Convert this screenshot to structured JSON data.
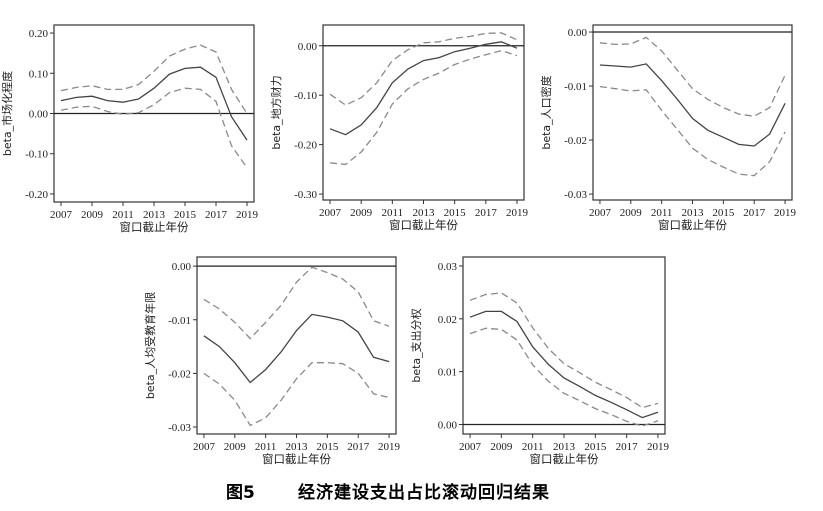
{
  "figure": {
    "number": "图5",
    "title": "经济建设支出占比滚动回归结果"
  },
  "colors": {
    "estimate": "#444444",
    "ci": "#8a8a8a",
    "zero": "#222222",
    "axis": "#333333"
  },
  "chart_data": [
    {
      "type": "line",
      "ylabel": "beta_市场化程度",
      "xlabel": "窗口截止年份",
      "x": [
        2007,
        2008,
        2009,
        2010,
        2011,
        2012,
        2013,
        2014,
        2015,
        2016,
        2017,
        2018,
        2019
      ],
      "xticks": [
        "2007",
        "2009",
        "2011",
        "2013",
        "2015",
        "2017",
        "2019"
      ],
      "yticks": [
        "-0.20",
        "-0.10",
        "0.00",
        "0.10",
        "0.20"
      ],
      "xlim": [
        2006.55,
        2019.45
      ],
      "ylim": [
        -0.22,
        0.22
      ],
      "series": [
        {
          "name": "estimate",
          "style": "solid",
          "values": [
            0.032,
            0.04,
            0.043,
            0.032,
            0.028,
            0.036,
            0.063,
            0.098,
            0.112,
            0.115,
            0.09,
            -0.008,
            -0.066
          ]
        },
        {
          "name": "upper",
          "style": "dashed",
          "values": [
            0.057,
            0.065,
            0.069,
            0.06,
            0.06,
            0.072,
            0.105,
            0.143,
            0.16,
            0.17,
            0.153,
            0.06,
            0.0
          ]
        },
        {
          "name": "lower",
          "style": "dashed",
          "values": [
            0.008,
            0.016,
            0.018,
            0.005,
            -0.002,
            0.002,
            0.022,
            0.052,
            0.063,
            0.06,
            0.03,
            -0.08,
            -0.135
          ]
        }
      ]
    },
    {
      "type": "line",
      "ylabel": "beta_地方财力",
      "xlabel": "窗口截止年份",
      "x": [
        2007,
        2008,
        2009,
        2010,
        2011,
        2012,
        2013,
        2014,
        2015,
        2016,
        2017,
        2018,
        2019
      ],
      "xticks": [
        "2007",
        "2009",
        "2011",
        "2013",
        "2015",
        "2017",
        "2019"
      ],
      "yticks": [
        "-0.30",
        "-0.20",
        "-0.10",
        "0.00"
      ],
      "xlim": [
        2006.55,
        2019.45
      ],
      "ylim": [
        -0.312,
        0.042
      ],
      "series": [
        {
          "name": "estimate",
          "style": "solid",
          "values": [
            -0.168,
            -0.18,
            -0.16,
            -0.125,
            -0.075,
            -0.047,
            -0.03,
            -0.024,
            -0.012,
            -0.005,
            0.003,
            0.008,
            -0.005
          ]
        },
        {
          "name": "upper",
          "style": "dashed",
          "values": [
            -0.098,
            -0.12,
            -0.105,
            -0.075,
            -0.03,
            -0.008,
            0.006,
            0.008,
            0.015,
            0.019,
            0.025,
            0.026,
            0.012
          ]
        },
        {
          "name": "lower",
          "style": "dashed",
          "values": [
            -0.237,
            -0.24,
            -0.215,
            -0.175,
            -0.118,
            -0.087,
            -0.068,
            -0.055,
            -0.038,
            -0.027,
            -0.018,
            -0.01,
            -0.02
          ]
        }
      ]
    },
    {
      "type": "line",
      "ylabel": "beta_人口密度",
      "xlabel": "窗口截止年份",
      "x": [
        2007,
        2008,
        2009,
        2010,
        2011,
        2012,
        2013,
        2014,
        2015,
        2016,
        2017,
        2018,
        2019
      ],
      "xticks": [
        "2007",
        "2009",
        "2011",
        "2013",
        "2015",
        "2017",
        "2019"
      ],
      "yticks": [
        "-0.03",
        "-0.02",
        "-0.01",
        "0.00"
      ],
      "xlim": [
        2006.55,
        2019.45
      ],
      "ylim": [
        -0.0311,
        0.0013
      ],
      "series": [
        {
          "name": "estimate",
          "style": "solid",
          "values": [
            -0.0061,
            -0.0063,
            -0.0065,
            -0.0059,
            -0.009,
            -0.0124,
            -0.016,
            -0.0182,
            -0.0195,
            -0.0208,
            -0.0211,
            -0.0189,
            -0.0132
          ]
        },
        {
          "name": "upper",
          "style": "dashed",
          "values": [
            -0.002,
            -0.0023,
            -0.0022,
            -0.001,
            -0.0035,
            -0.007,
            -0.0105,
            -0.0125,
            -0.014,
            -0.0152,
            -0.0156,
            -0.014,
            -0.008
          ]
        },
        {
          "name": "lower",
          "style": "dashed",
          "values": [
            -0.0101,
            -0.0105,
            -0.0109,
            -0.0107,
            -0.0145,
            -0.018,
            -0.0215,
            -0.0236,
            -0.025,
            -0.0263,
            -0.0266,
            -0.024,
            -0.0185
          ]
        }
      ]
    },
    {
      "type": "line",
      "ylabel": "beta_人均受教育年限",
      "xlabel": "窗口截止年份",
      "x": [
        2007,
        2008,
        2009,
        2010,
        2011,
        2012,
        2013,
        2014,
        2015,
        2016,
        2017,
        2018,
        2019
      ],
      "xticks": [
        "2007",
        "2009",
        "2011",
        "2013",
        "2015",
        "2017",
        "2019"
      ],
      "yticks": [
        "-0.03",
        "-0.02",
        "-0.01",
        "0.00"
      ],
      "xlim": [
        2006.55,
        2019.45
      ],
      "ylim": [
        -0.0313,
        0.0017
      ],
      "series": [
        {
          "name": "estimate",
          "style": "solid",
          "values": [
            -0.013,
            -0.015,
            -0.018,
            -0.0217,
            -0.0193,
            -0.016,
            -0.012,
            -0.009,
            -0.0095,
            -0.0102,
            -0.0123,
            -0.017,
            -0.0178
          ]
        },
        {
          "name": "upper",
          "style": "dashed",
          "values": [
            -0.0062,
            -0.008,
            -0.0105,
            -0.0135,
            -0.0105,
            -0.0073,
            -0.003,
            -0.0002,
            -0.0012,
            -0.0024,
            -0.0048,
            -0.0102,
            -0.0112
          ]
        },
        {
          "name": "lower",
          "style": "dashed",
          "values": [
            -0.02,
            -0.022,
            -0.025,
            -0.0297,
            -0.0283,
            -0.025,
            -0.021,
            -0.018,
            -0.018,
            -0.0182,
            -0.02,
            -0.0238,
            -0.0245
          ]
        }
      ]
    },
    {
      "type": "line",
      "ylabel": "beta_支出分权",
      "xlabel": "窗口截止年份",
      "x": [
        2007,
        2008,
        2009,
        2010,
        2011,
        2012,
        2013,
        2014,
        2015,
        2016,
        2017,
        2018,
        2019
      ],
      "xticks": [
        "2007",
        "2009",
        "2011",
        "2013",
        "2015",
        "2017",
        "2019"
      ],
      "yticks": [
        "0.00",
        "0.01",
        "0.02",
        "0.03"
      ],
      "xlim": [
        2006.55,
        2019.45
      ],
      "ylim": [
        -0.0018,
        0.0317
      ],
      "series": [
        {
          "name": "estimate",
          "style": "solid",
          "values": [
            0.0203,
            0.0214,
            0.0214,
            0.0195,
            0.0147,
            0.0114,
            0.0088,
            0.0072,
            0.0055,
            0.0042,
            0.0028,
            0.0013,
            0.0023
          ]
        },
        {
          "name": "upper",
          "style": "dashed",
          "values": [
            0.0235,
            0.0246,
            0.0249,
            0.023,
            0.0183,
            0.0144,
            0.0115,
            0.0098,
            0.008,
            0.0066,
            0.0051,
            0.0032,
            0.004
          ]
        },
        {
          "name": "lower",
          "style": "dashed",
          "values": [
            0.0172,
            0.0182,
            0.018,
            0.016,
            0.0113,
            0.0082,
            0.0059,
            0.0045,
            0.003,
            0.0019,
            0.0006,
            -0.0003,
            0.0007
          ]
        }
      ]
    }
  ]
}
